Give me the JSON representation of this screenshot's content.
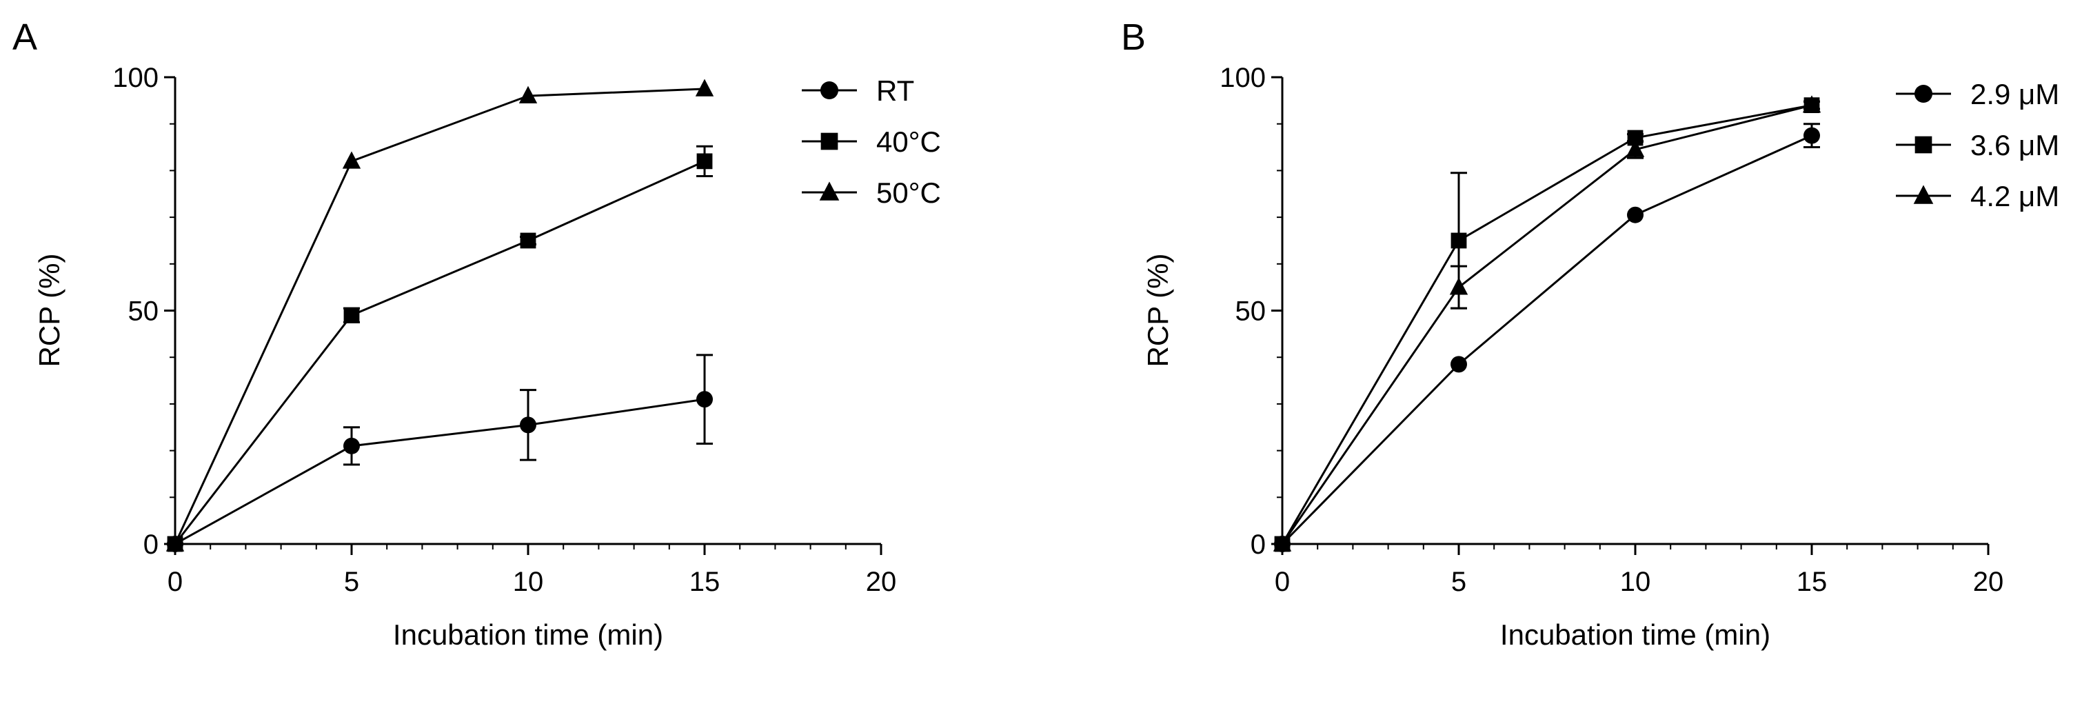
{
  "chart_data": [
    {
      "panel": "A",
      "type": "line",
      "xlabel": "Incubation time (min)",
      "ylabel": "RCP (%)",
      "xlim": [
        0,
        20
      ],
      "ylim": [
        0,
        100
      ],
      "xticks": [
        0,
        5,
        10,
        15,
        20
      ],
      "yticks": [
        0,
        50,
        100
      ],
      "legend": "top-right",
      "series": [
        {
          "name": "RT",
          "marker": "circle",
          "x": [
            0,
            5,
            10,
            15
          ],
          "y": [
            0,
            21,
            25.5,
            31
          ],
          "err": [
            0,
            4,
            7.5,
            9.5
          ]
        },
        {
          "name": "40°C",
          "marker": "square",
          "x": [
            0,
            5,
            10,
            15
          ],
          "y": [
            0,
            49,
            65,
            82
          ],
          "err": [
            0,
            1.5,
            0.8,
            3.2
          ]
        },
        {
          "name": "50°C",
          "marker": "triangle",
          "x": [
            0,
            5,
            10,
            15
          ],
          "y": [
            0,
            82,
            96,
            97.5
          ],
          "err": [
            0,
            0,
            0,
            0
          ]
        }
      ]
    },
    {
      "panel": "B",
      "type": "line",
      "xlabel": "Incubation time (min)",
      "ylabel": "RCP (%)",
      "xlim": [
        0,
        20
      ],
      "ylim": [
        0,
        100
      ],
      "xticks": [
        0,
        5,
        10,
        15,
        20
      ],
      "yticks": [
        0,
        50,
        100
      ],
      "legend": "top-right",
      "series": [
        {
          "name": "2.9 μM",
          "marker": "circle",
          "x": [
            0,
            5,
            10,
            15
          ],
          "y": [
            0,
            38.5,
            70.5,
            87.5
          ],
          "err": [
            0,
            0,
            0,
            2.5
          ]
        },
        {
          "name": "3.6 μM",
          "marker": "square",
          "x": [
            0,
            5,
            10,
            15
          ],
          "y": [
            0,
            65,
            87,
            94
          ],
          "err": [
            0,
            14.5,
            0.8,
            0.8
          ]
        },
        {
          "name": "4.2 μM",
          "marker": "triangle",
          "x": [
            0,
            5,
            10,
            15
          ],
          "y": [
            0,
            55,
            84.5,
            94
          ],
          "err": [
            0,
            4.5,
            1.8,
            0.8
          ]
        }
      ]
    }
  ]
}
